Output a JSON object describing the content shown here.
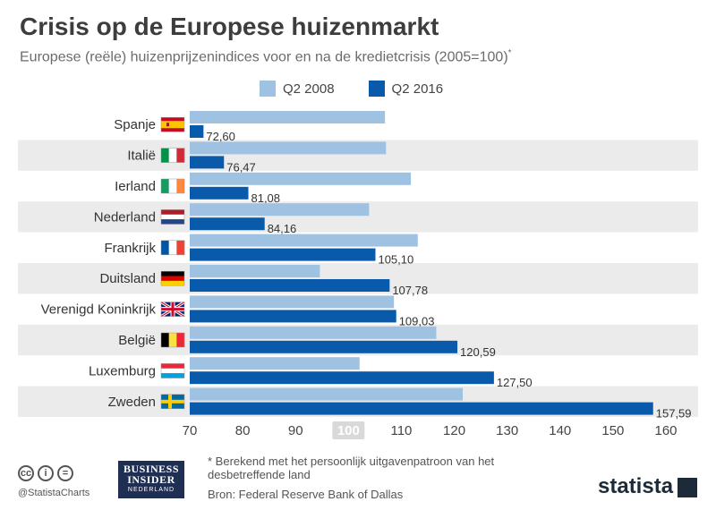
{
  "title": "Crisis op de Europese huizenmarkt",
  "subtitle": "Europese (reële) huizenprijzenindices voor en na de kredietcrisis (2005=100)",
  "subtitle_marker": "*",
  "colors": {
    "q2_2008": "#9fc1e2",
    "q2_2016": "#0a5aab",
    "band": "#ebebeb",
    "ref_label_bg": "#d9d9d9"
  },
  "chart_data": {
    "type": "bar",
    "orientation": "horizontal",
    "categories": [
      "Spanje",
      "Italië",
      "Ierland",
      "Nederland",
      "Frankrijk",
      "Duitsland",
      "Verenigd Koninkrijk",
      "België",
      "Luxemburg",
      "Zweden"
    ],
    "flags": [
      "flag-spain-icon",
      "flag-italy-icon",
      "flag-ireland-icon",
      "flag-netherlands-icon",
      "flag-france-icon",
      "flag-germany-icon",
      "flag-uk-icon",
      "flag-belgium-icon",
      "flag-luxembourg-icon",
      "flag-sweden-icon"
    ],
    "series": [
      {
        "name": "Q2 2008",
        "values": [
          106.9,
          107.1,
          111.8,
          103.9,
          113.1,
          94.6,
          108.6,
          116.6,
          102.1,
          121.6
        ]
      },
      {
        "name": "Q2 2016",
        "values": [
          72.6,
          76.47,
          81.08,
          84.16,
          105.1,
          107.78,
          109.03,
          120.59,
          127.5,
          157.59
        ]
      }
    ],
    "data_labels": [
      "72,60",
      "76,47",
      "81,08",
      "84,16",
      "105,10",
      "107,78",
      "109,03",
      "120,59",
      "127,50",
      "157,59"
    ],
    "xlim": [
      70,
      160
    ],
    "xticks": [
      "70",
      "80",
      "90",
      "100",
      "110",
      "120",
      "130",
      "140",
      "150",
      "160"
    ],
    "highlight_tick": "100",
    "legend_position": "top"
  },
  "footnote": "* Berekend met het persoonlijk uitgavenpatroon van het desbetreffende land",
  "source": "Bron: Federal Reserve Bank of Dallas",
  "handle": "@StatistaCharts",
  "publisher": {
    "line1": "BUSINESS",
    "line2": "INSIDER",
    "line3": "NEDERLAND"
  },
  "brand": "statista"
}
